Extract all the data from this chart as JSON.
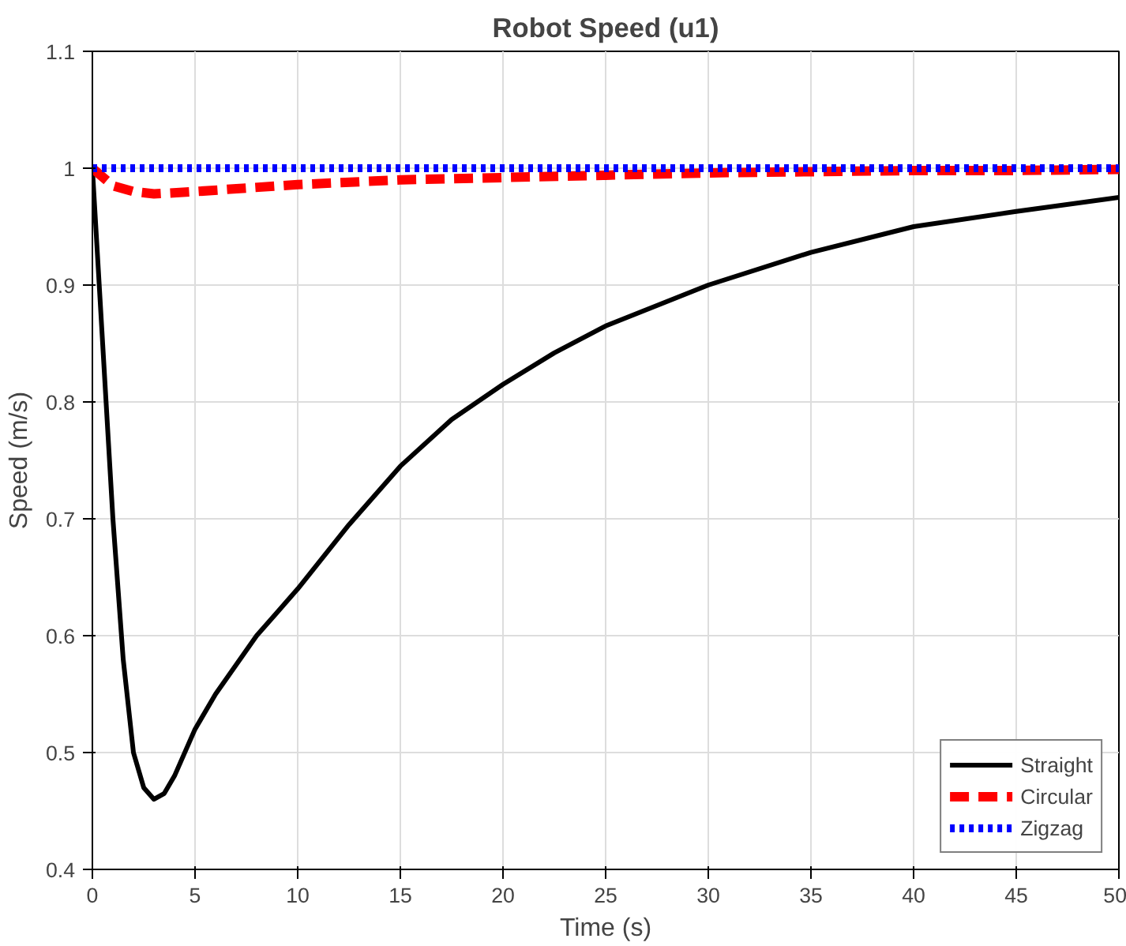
{
  "chart_data": {
    "type": "line",
    "title": "Robot Speed (u1)",
    "xlabel": "Time (s)",
    "ylabel": "Speed (m/s)",
    "xlim": [
      0,
      50
    ],
    "ylim": [
      0.4,
      1.1
    ],
    "xticks": [
      0,
      5,
      10,
      15,
      20,
      25,
      30,
      35,
      40,
      45,
      50
    ],
    "yticks": [
      0.4,
      0.5,
      0.6,
      0.7,
      0.8,
      0.9,
      1,
      1.1
    ],
    "grid": true,
    "legend": "bottom right",
    "marker": "none",
    "series": [
      {
        "name": "Straight",
        "color": "#000000",
        "line_style": "solid",
        "x": [
          0,
          0.5,
          1,
          1.5,
          2,
          2.5,
          3,
          3.5,
          4,
          5,
          6,
          7,
          8,
          9,
          10,
          12.5,
          15,
          17.5,
          20,
          22.5,
          25,
          30,
          35,
          40,
          45,
          50
        ],
        "values": [
          1.0,
          0.85,
          0.7,
          0.58,
          0.5,
          0.47,
          0.46,
          0.465,
          0.48,
          0.52,
          0.55,
          0.575,
          0.6,
          0.62,
          0.64,
          0.695,
          0.745,
          0.785,
          0.815,
          0.842,
          0.865,
          0.9,
          0.928,
          0.95,
          0.963,
          0.975
        ]
      },
      {
        "name": "Circular",
        "color": "#ff0000",
        "line_style": "dashed",
        "x": [
          0,
          1,
          2,
          3,
          5,
          10,
          15,
          20,
          25,
          30,
          35,
          40,
          45,
          50
        ],
        "values": [
          1.0,
          0.985,
          0.98,
          0.978,
          0.98,
          0.986,
          0.99,
          0.992,
          0.994,
          0.996,
          0.997,
          0.998,
          0.998,
          0.999
        ]
      },
      {
        "name": "Zigzag",
        "color": "#0000ff",
        "line_style": "dotted",
        "x": [
          0,
          50
        ],
        "values": [
          1.0,
          1.0
        ]
      }
    ]
  }
}
